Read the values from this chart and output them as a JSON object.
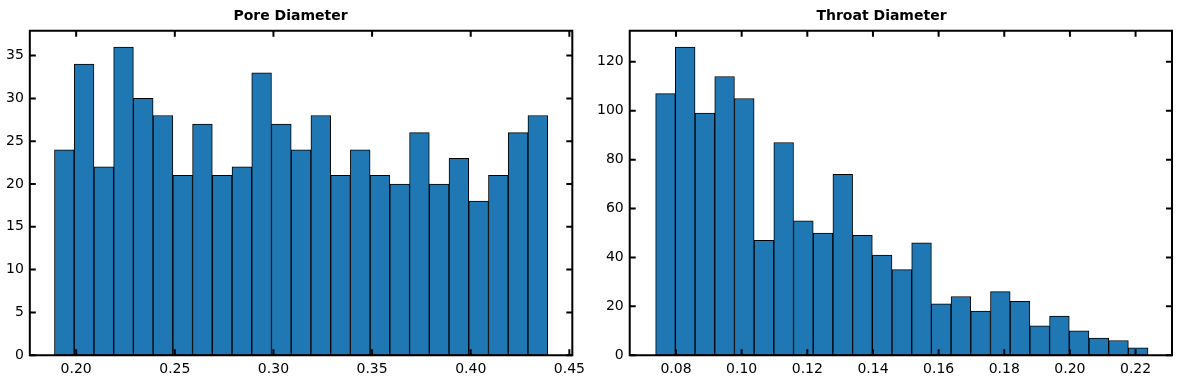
{
  "chart_data": [
    {
      "type": "histogram",
      "title": "Pore Diameter",
      "color": "#1f77b4",
      "bins": [
        0.189,
        0.199,
        0.209,
        0.219,
        0.229,
        0.239,
        0.249,
        0.259,
        0.269,
        0.279,
        0.289,
        0.299,
        0.309,
        0.319,
        0.329,
        0.339,
        0.349,
        0.359,
        0.369,
        0.379,
        0.389,
        0.399,
        0.409,
        0.419,
        0.429,
        0.439
      ],
      "values": [
        24,
        34,
        22,
        36,
        30,
        28,
        21,
        27,
        21,
        22,
        33,
        27,
        24,
        28,
        21,
        24,
        21,
        20,
        26,
        20,
        23,
        18,
        21,
        26,
        28
      ],
      "xlim": [
        0.1765,
        0.4515
      ],
      "xticks": [
        {
          "value": 0.2,
          "label": "0.20"
        },
        {
          "value": 0.25,
          "label": "0.25"
        },
        {
          "value": 0.3,
          "label": "0.30"
        },
        {
          "value": 0.35,
          "label": "0.35"
        },
        {
          "value": 0.4,
          "label": "0.40"
        },
        {
          "value": 0.45,
          "label": "0.45"
        }
      ],
      "ylim": [
        0,
        37.9
      ],
      "yticks": [
        0,
        5,
        10,
        15,
        20,
        25,
        30,
        35
      ]
    },
    {
      "type": "histogram",
      "title": "Throat Diameter",
      "color": "#1f77b4",
      "bins": [
        0.0738,
        0.0798,
        0.0858,
        0.0918,
        0.0978,
        0.1038,
        0.1098,
        0.1158,
        0.1218,
        0.1278,
        0.1338,
        0.1398,
        0.1458,
        0.1518,
        0.1578,
        0.1638,
        0.1698,
        0.1758,
        0.1818,
        0.1878,
        0.1938,
        0.1998,
        0.2058,
        0.2118,
        0.2178,
        0.2238
      ],
      "values": [
        107,
        126,
        99,
        114,
        105,
        47,
        87,
        55,
        50,
        74,
        49,
        41,
        35,
        46,
        21,
        24,
        18,
        26,
        22,
        12,
        16,
        10,
        7,
        6,
        3
      ],
      "xlim": [
        0.0659,
        0.2311
      ],
      "xticks": [
        {
          "value": 0.08,
          "label": "0.08"
        },
        {
          "value": 0.1,
          "label": "0.10"
        },
        {
          "value": 0.12,
          "label": "0.12"
        },
        {
          "value": 0.14,
          "label": "0.14"
        },
        {
          "value": 0.16,
          "label": "0.16"
        },
        {
          "value": 0.18,
          "label": "0.18"
        },
        {
          "value": 0.2,
          "label": "0.20"
        },
        {
          "value": 0.22,
          "label": "0.22"
        }
      ],
      "ylim": [
        0,
        132.7
      ],
      "yticks": [
        0,
        20,
        40,
        60,
        80,
        100,
        120
      ]
    }
  ]
}
